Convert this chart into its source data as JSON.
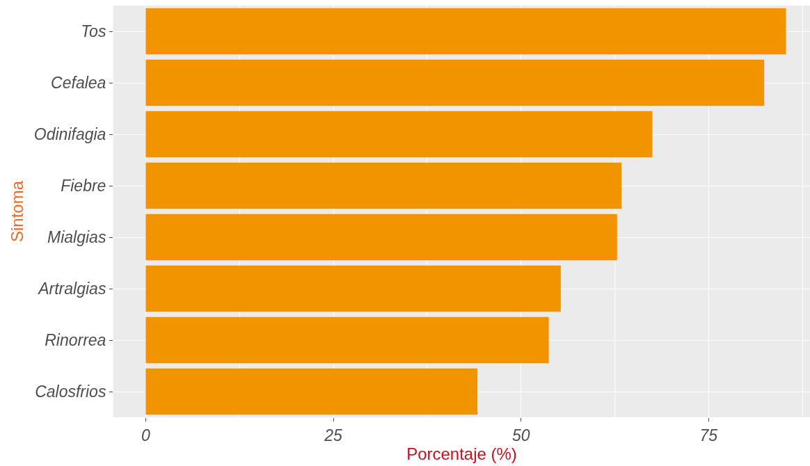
{
  "chart_data": {
    "type": "bar",
    "orientation": "horizontal",
    "xlabel": "Porcentaje (%)",
    "ylabel": "Sintoma",
    "categories": [
      "Tos",
      "Cefalea",
      "Odinifagia",
      "Fiebre",
      "Mialgias",
      "Artralgias",
      "Rinorrea",
      "Calosfrios"
    ],
    "values": [
      85.3,
      82.4,
      67.5,
      63.4,
      62.8,
      55.3,
      53.7,
      44.2
    ],
    "color": "#f29400",
    "xlim": [
      -4.3,
      88.5
    ],
    "xticks": [
      0,
      25,
      50,
      75
    ],
    "grid": true
  }
}
